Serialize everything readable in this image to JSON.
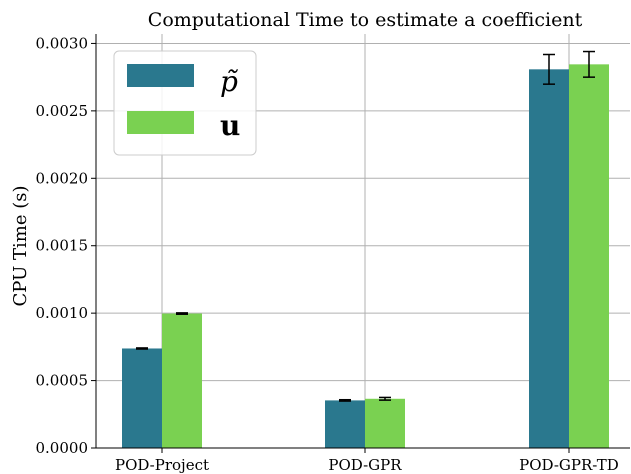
{
  "chart_data": {
    "type": "bar",
    "title": "Computational Time to estimate a coefficient",
    "xlabel": "",
    "ylabel": "CPU Time (s)",
    "categories": [
      "POD-Project",
      "POD-GPR",
      "POD-GPR-TD"
    ],
    "ylim": [
      0,
      0.00307
    ],
    "yticks": [
      "0.0000",
      "0.0005",
      "0.0010",
      "0.0015",
      "0.0020",
      "0.0025",
      "0.0030"
    ],
    "ytick_values": [
      0,
      0.0005,
      0.001,
      0.0015,
      0.002,
      0.0025,
      0.003
    ],
    "grid": true,
    "legend_position": "top-left",
    "series": [
      {
        "name": "p̃",
        "color": "#2a788e",
        "values": [
          0.000738,
          0.000353,
          0.002808
        ],
        "errors": [
          4e-06,
          5e-06,
          0.00011
        ]
      },
      {
        "name": "u",
        "color": "#7ad151",
        "values": [
          0.000997,
          0.000365,
          0.002845
        ],
        "errors": [
          5e-06,
          1e-05,
          9.5e-05
        ]
      }
    ]
  }
}
